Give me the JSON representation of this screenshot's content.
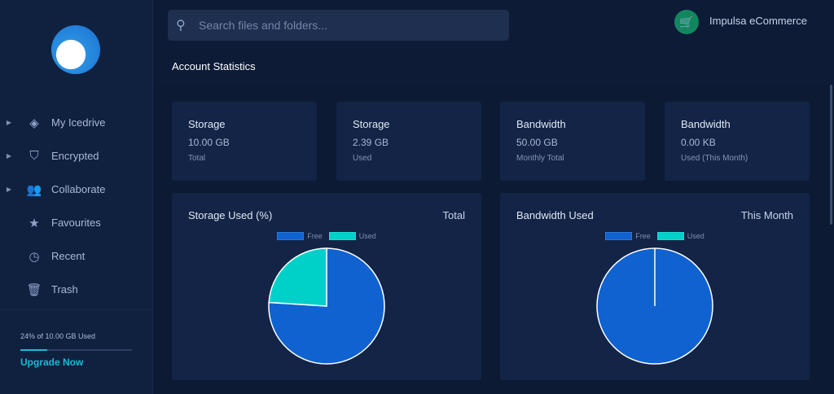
{
  "sidebar": {
    "items": [
      {
        "label": "My Icedrive",
        "icon": "layers-icon",
        "expandable": true
      },
      {
        "label": "Encrypted",
        "icon": "shield-icon",
        "expandable": true
      },
      {
        "label": "Collaborate",
        "icon": "users-icon",
        "expandable": true
      },
      {
        "label": "Favourites",
        "icon": "star-icon",
        "expandable": false
      },
      {
        "label": "Recent",
        "icon": "clock-icon",
        "expandable": false
      },
      {
        "label": "Trash",
        "icon": "trash-icon",
        "expandable": false
      }
    ],
    "usage_text": "24% of 10.00 GB Used",
    "usage_fraction": 0.24,
    "upgrade_label": "Upgrade Now"
  },
  "search": {
    "placeholder": "Search files and folders...",
    "value": ""
  },
  "user": {
    "name": "Impulsa eCommerce"
  },
  "page_title": "Account Statistics",
  "stats": [
    {
      "title": "Storage",
      "value": "10.00 GB",
      "sub": "Total"
    },
    {
      "title": "Storage",
      "value": "2.39 GB",
      "sub": "Used"
    },
    {
      "title": "Bandwidth",
      "value": "50.00 GB",
      "sub": "Monthly Total"
    },
    {
      "title": "Bandwidth",
      "value": "0.00 KB",
      "sub": "Used (This Month)"
    }
  ],
  "chart_data": [
    {
      "type": "pie",
      "title": "Storage Used (%)",
      "period": "Total",
      "labels": [
        "Free",
        "Used"
      ],
      "values": [
        76,
        24
      ],
      "colors": [
        "#0f62d0",
        "#00d1c8"
      ]
    },
    {
      "type": "pie",
      "title": "Bandwidth Used",
      "period": "This Month",
      "labels": [
        "Free",
        "Used"
      ],
      "values": [
        100,
        0
      ],
      "colors": [
        "#0f62d0",
        "#00d1c8"
      ]
    }
  ]
}
